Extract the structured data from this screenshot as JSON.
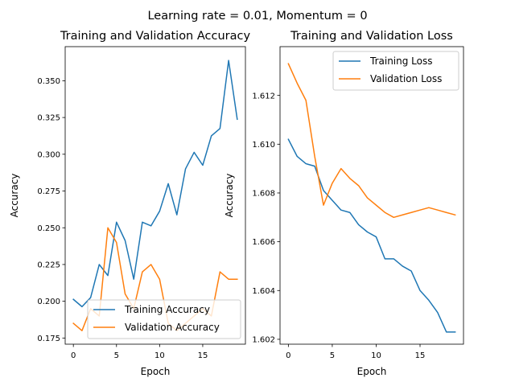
{
  "suptitle": "Learning rate = 0.01, Momentum = 0",
  "chart_data": [
    {
      "type": "line",
      "title": "Training and Validation Accuracy",
      "xlabel": "Epoch",
      "ylabel": "Accuracy",
      "xlim": [
        -0.95,
        19.95
      ],
      "ylim": [
        0.1708,
        0.3732
      ],
      "xticks": [
        0,
        5,
        10,
        15
      ],
      "yticks": [
        0.175,
        0.2,
        0.225,
        0.25,
        0.275,
        0.3,
        0.325,
        0.35
      ],
      "ytick_labels": [
        "0.175",
        "0.200",
        "0.225",
        "0.250",
        "0.275",
        "0.300",
        "0.325",
        "0.350"
      ],
      "legend_position": "lower right",
      "x": [
        0,
        1,
        2,
        3,
        4,
        5,
        6,
        7,
        8,
        9,
        10,
        11,
        12,
        13,
        14,
        15,
        16,
        17,
        18,
        19
      ],
      "series": [
        {
          "name": "Training Accuracy",
          "color": "#1f77b4",
          "values": [
            0.2013,
            0.1963,
            0.2025,
            0.225,
            0.2175,
            0.2538,
            0.2413,
            0.215,
            0.2538,
            0.2513,
            0.2613,
            0.28,
            0.2588,
            0.29,
            0.3013,
            0.2925,
            0.3125,
            0.3175,
            0.3638,
            0.3238
          ]
        },
        {
          "name": "Validation Accuracy",
          "color": "#ff7f0e",
          "values": [
            0.185,
            0.18,
            0.195,
            0.19,
            0.25,
            0.24,
            0.205,
            0.195,
            0.22,
            0.225,
            0.215,
            0.185,
            0.18,
            0.185,
            0.19,
            0.195,
            0.19,
            0.22,
            0.215,
            0.215
          ]
        }
      ]
    },
    {
      "type": "line",
      "title": "Training and Validation Loss",
      "xlabel": "Epoch",
      "ylabel": "Accuracy",
      "xlim": [
        -0.95,
        19.95
      ],
      "ylim": [
        1.6018,
        1.614
      ],
      "xticks": [
        0,
        5,
        10,
        15
      ],
      "yticks": [
        1.602,
        1.604,
        1.606,
        1.608,
        1.61,
        1.612
      ],
      "ytick_labels": [
        "1.602",
        "1.604",
        "1.606",
        "1.608",
        "1.610",
        "1.612"
      ],
      "legend_position": "upper right",
      "x": [
        0,
        1,
        2,
        3,
        4,
        5,
        6,
        7,
        8,
        9,
        10,
        11,
        12,
        13,
        14,
        15,
        16,
        17,
        18,
        19
      ],
      "series": [
        {
          "name": "Training Loss",
          "color": "#1f77b4",
          "values": [
            1.6102,
            1.6095,
            1.6092,
            1.6091,
            1.6081,
            1.6077,
            1.6073,
            1.6072,
            1.6067,
            1.6064,
            1.6062,
            1.6053,
            1.6053,
            1.605,
            1.6048,
            1.604,
            1.6036,
            1.6031,
            1.6023,
            1.6023
          ]
        },
        {
          "name": "Validation Loss",
          "color": "#ff7f0e",
          "values": [
            1.6133,
            1.6125,
            1.6118,
            1.6095,
            1.6075,
            1.6084,
            1.609,
            1.6086,
            1.6083,
            1.6078,
            1.6075,
            1.6072,
            1.607,
            1.6071,
            1.6072,
            1.6073,
            1.6074,
            1.6073,
            1.6072,
            1.6071
          ]
        }
      ]
    }
  ]
}
